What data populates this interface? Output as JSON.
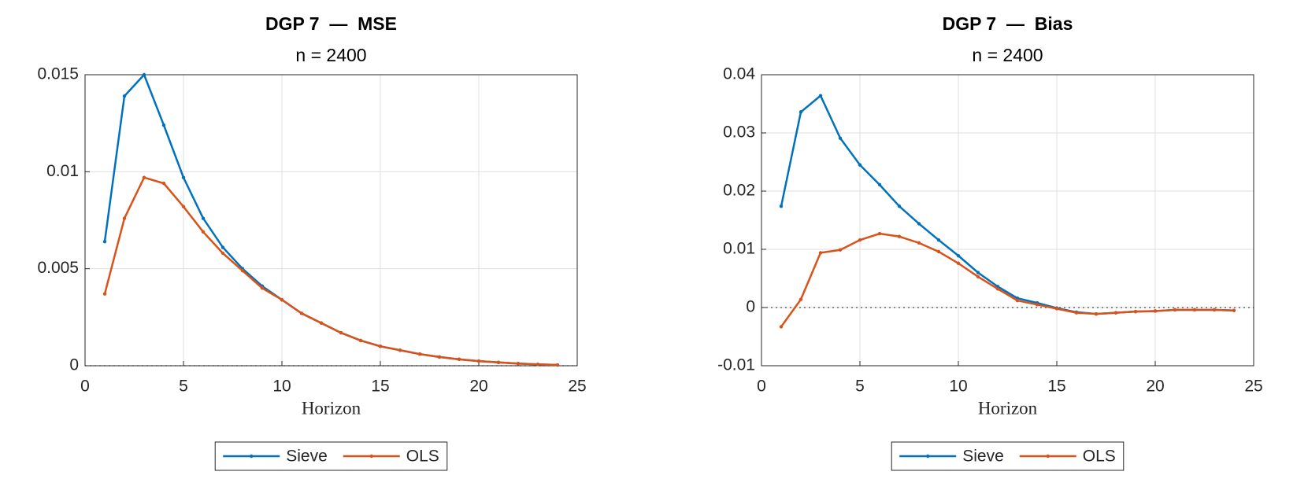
{
  "chart_data": [
    {
      "type": "line",
      "title": "DGP 7  —  MSE",
      "subtitle": "n = 2400",
      "x_label": "Horizon",
      "x": [
        1,
        2,
        3,
        4,
        5,
        6,
        7,
        8,
        9,
        10,
        11,
        12,
        13,
        14,
        15,
        16,
        17,
        18,
        19,
        20,
        21,
        22,
        23,
        24
      ],
      "series": [
        {
          "name": "Sieve",
          "color": "#0072bd",
          "values": [
            0.0064,
            0.0139,
            0.015,
            0.0124,
            0.0097,
            0.0076,
            0.0061,
            0.005,
            0.0041,
            0.0034,
            0.0027,
            0.0022,
            0.0017,
            0.0013,
            0.001,
            0.0008,
            0.0006,
            0.00045,
            0.00033,
            0.00024,
            0.00017,
            0.00011,
            7e-05,
            4e-05
          ]
        },
        {
          "name": "OLS",
          "color": "#d95319",
          "values": [
            0.0037,
            0.0076,
            0.0097,
            0.0094,
            0.0082,
            0.0069,
            0.0058,
            0.0049,
            0.004,
            0.0034,
            0.0027,
            0.0022,
            0.0017,
            0.0013,
            0.001,
            0.0008,
            0.0006,
            0.00045,
            0.00033,
            0.00024,
            0.00017,
            0.00011,
            7e-05,
            4e-05
          ]
        }
      ],
      "xlim": [
        0,
        25
      ],
      "xticks": [
        0,
        5,
        10,
        15,
        20,
        25
      ],
      "ylim": [
        0,
        0.015
      ],
      "yticks": [
        0,
        0.005,
        0.01,
        0.015
      ],
      "grid": true,
      "zero_line": true,
      "legend": "bottom"
    },
    {
      "type": "line",
      "title": "DGP 7  —  Bias",
      "subtitle": "n = 2400",
      "x_label": "Horizon",
      "x": [
        1,
        2,
        3,
        4,
        5,
        6,
        7,
        8,
        9,
        10,
        11,
        12,
        13,
        14,
        15,
        16,
        17,
        18,
        19,
        20,
        21,
        22,
        23,
        24
      ],
      "series": [
        {
          "name": "Sieve",
          "color": "#0072bd",
          "values": [
            0.0174,
            0.0336,
            0.0364,
            0.0291,
            0.0245,
            0.0211,
            0.0174,
            0.0144,
            0.0116,
            0.0089,
            0.006,
            0.0036,
            0.0016,
            0.0008,
            -0.0001,
            -0.0008,
            -0.0011,
            -0.0009,
            -0.0007,
            -0.0006,
            -0.0004,
            -0.0004,
            -0.0004,
            -0.0005
          ]
        },
        {
          "name": "OLS",
          "color": "#d95319",
          "values": [
            -0.0033,
            0.0014,
            0.0094,
            0.0099,
            0.0116,
            0.0127,
            0.0122,
            0.0111,
            0.0096,
            0.0076,
            0.0053,
            0.0032,
            0.0012,
            0.0005,
            -0.0002,
            -0.0009,
            -0.0011,
            -0.0009,
            -0.0007,
            -0.0006,
            -0.0004,
            -0.0004,
            -0.0004,
            -0.0005
          ]
        }
      ],
      "xlim": [
        0,
        25
      ],
      "xticks": [
        0,
        5,
        10,
        15,
        20,
        25
      ],
      "ylim": [
        -0.01,
        0.04
      ],
      "yticks": [
        -0.01,
        0,
        0.01,
        0.02,
        0.03,
        0.04
      ],
      "grid": true,
      "zero_line": true,
      "legend": "bottom"
    }
  ]
}
